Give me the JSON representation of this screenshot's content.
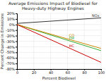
{
  "chart_data": {
    "type": "line",
    "title": "Average Emissions Impact of Biodiesel for\nHeavy-duty Highway Engines",
    "x_label": "Percent Biodiesel",
    "y_label": "Percent Change in Emissions",
    "x": [
      0,
      100
    ],
    "series": [
      {
        "name": "NOx",
        "color": "#333333",
        "values": [
          2,
          12
        ]
      },
      {
        "name": "PM",
        "color": "#33aa33",
        "values": [
          0,
          -47
        ]
      },
      {
        "name": "CO",
        "color": "#cc8800",
        "values": [
          0,
          -43
        ]
      },
      {
        "name": "HC",
        "color": "#cc0000",
        "values": [
          0,
          -68
        ]
      }
    ],
    "annotations": [
      {
        "text": "NOx",
        "x": 98,
        "y": 13
      },
      {
        "text": "PM",
        "x": 62,
        "y": -28
      },
      {
        "text": "CO",
        "x": 62,
        "y": -23
      },
      {
        "text": "HC",
        "x": 62,
        "y": -42
      }
    ],
    "xlim": [
      0,
      100
    ],
    "ylim": [
      -80,
      20
    ],
    "xticks": [
      0,
      20,
      40,
      60,
      80,
      100
    ],
    "yticks": [
      {
        "value": 20,
        "label": "20%"
      },
      {
        "value": 10,
        "label": "10%"
      },
      {
        "value": 0,
        "label": "0%"
      },
      {
        "value": -10,
        "label": "-10%"
      },
      {
        "value": -20,
        "label": "-20%"
      },
      {
        "value": -30,
        "label": "-30%"
      },
      {
        "value": -40,
        "label": "-40%"
      },
      {
        "value": -50,
        "label": "-50%"
      },
      {
        "value": -60,
        "label": "-60%"
      },
      {
        "value": -70,
        "label": "-70%"
      },
      {
        "value": -80,
        "label": "-80%"
      }
    ],
    "grid": true
  }
}
